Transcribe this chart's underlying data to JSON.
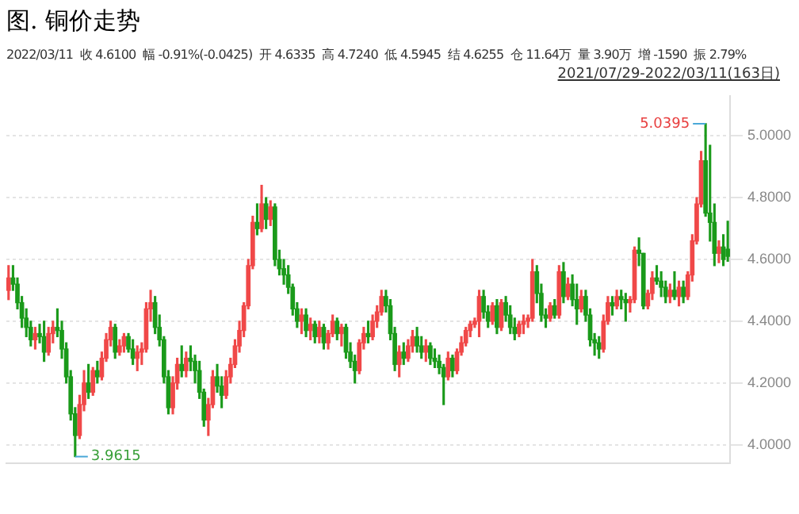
{
  "chart_data": {
    "type": "candlestick",
    "title": "图. 铜价走势",
    "subtitle": "2022/03/11  收 4.6100  幅 -0.91%(-0.0425)  开 4.6335  高 4.7240  低 4.5945  结 4.6255  仓 11.64万  量 3.90万  增 -1590  振 2.79%",
    "annotations": [
      "2021/07/29-2022/03/11(163日)",
      "5.0395",
      "3.9615"
    ],
    "ylim": [
      3.94,
      5.13
    ],
    "yticks": [
      {
        "value": 4,
        "label": "4.0000"
      },
      {
        "value": 4.2,
        "label": "4.2000"
      },
      {
        "value": 4.4,
        "label": "4.4000"
      },
      {
        "value": 4.6,
        "label": "4.6000"
      },
      {
        "value": 4.8,
        "label": "4.8000"
      },
      {
        "value": 5,
        "label": "5.0000"
      }
    ],
    "grid": "y",
    "ohlc": [
      [
        4.5,
        4.58,
        4.47,
        4.54
      ],
      [
        4.54,
        4.58,
        4.5,
        4.52
      ],
      [
        4.52,
        4.54,
        4.44,
        4.46
      ],
      [
        4.46,
        4.48,
        4.38,
        4.41
      ],
      [
        4.41,
        4.44,
        4.35,
        4.38
      ],
      [
        4.38,
        4.4,
        4.32,
        4.34
      ],
      [
        4.34,
        4.38,
        4.31,
        4.36
      ],
      [
        4.36,
        4.39,
        4.33,
        4.35
      ],
      [
        4.35,
        4.4,
        4.27,
        4.3
      ],
      [
        4.3,
        4.38,
        4.29,
        4.36
      ],
      [
        4.36,
        4.4,
        4.33,
        4.38
      ],
      [
        4.38,
        4.44,
        4.35,
        4.37
      ],
      [
        4.37,
        4.4,
        4.28,
        4.31
      ],
      [
        4.31,
        4.33,
        4.2,
        4.22
      ],
      [
        4.22,
        4.24,
        4.08,
        4.1
      ],
      [
        4.1,
        4.12,
        3.9615,
        4.03
      ],
      [
        4.03,
        4.16,
        4.02,
        4.13
      ],
      [
        4.13,
        4.24,
        4.11,
        4.2
      ],
      [
        4.2,
        4.26,
        4.15,
        4.17
      ],
      [
        4.17,
        4.25,
        4.16,
        4.24
      ],
      [
        4.24,
        4.27,
        4.2,
        4.22
      ],
      [
        4.22,
        4.3,
        4.21,
        4.28
      ],
      [
        4.28,
        4.36,
        4.27,
        4.34
      ],
      [
        4.34,
        4.4,
        4.32,
        4.38
      ],
      [
        4.38,
        4.39,
        4.28,
        4.3
      ],
      [
        4.3,
        4.34,
        4.29,
        4.32
      ],
      [
        4.32,
        4.36,
        4.3,
        4.35
      ],
      [
        4.35,
        4.36,
        4.3,
        4.31
      ],
      [
        4.31,
        4.34,
        4.26,
        4.28
      ],
      [
        4.28,
        4.32,
        4.24,
        4.3
      ],
      [
        4.3,
        4.33,
        4.26,
        4.31
      ],
      [
        4.31,
        4.46,
        4.3,
        4.44
      ],
      [
        4.44,
        4.5,
        4.4,
        4.46
      ],
      [
        4.46,
        4.48,
        4.36,
        4.38
      ],
      [
        4.38,
        4.42,
        4.32,
        4.34
      ],
      [
        4.34,
        4.35,
        4.2,
        4.22
      ],
      [
        4.22,
        4.24,
        4.1,
        4.12
      ],
      [
        4.12,
        4.22,
        4.1,
        4.2
      ],
      [
        4.2,
        4.28,
        4.18,
        4.26
      ],
      [
        4.26,
        4.32,
        4.22,
        4.24
      ],
      [
        4.24,
        4.3,
        4.22,
        4.28
      ],
      [
        4.28,
        4.32,
        4.24,
        4.27
      ],
      [
        4.27,
        4.29,
        4.2,
        4.24
      ],
      [
        4.24,
        4.27,
        4.15,
        4.17
      ],
      [
        4.17,
        4.18,
        4.06,
        4.08
      ],
      [
        4.08,
        4.15,
        4.03,
        4.13
      ],
      [
        4.13,
        4.24,
        4.12,
        4.22
      ],
      [
        4.22,
        4.26,
        4.17,
        4.19
      ],
      [
        4.19,
        4.22,
        4.12,
        4.16
      ],
      [
        4.16,
        4.24,
        4.15,
        4.22
      ],
      [
        4.22,
        4.28,
        4.2,
        4.26
      ],
      [
        4.26,
        4.34,
        4.25,
        4.32
      ],
      [
        4.32,
        4.4,
        4.3,
        4.37
      ],
      [
        4.37,
        4.46,
        4.35,
        4.45
      ],
      [
        4.45,
        4.6,
        4.44,
        4.58
      ],
      [
        4.58,
        4.74,
        4.57,
        4.72
      ],
      [
        4.72,
        4.78,
        4.68,
        4.7
      ],
      [
        4.7,
        4.84,
        4.69,
        4.78
      ],
      [
        4.78,
        4.8,
        4.7,
        4.73
      ],
      [
        4.73,
        4.79,
        4.71,
        4.77
      ],
      [
        4.77,
        4.78,
        4.58,
        4.6
      ],
      [
        4.6,
        4.63,
        4.55,
        4.57
      ],
      [
        4.57,
        4.6,
        4.52,
        4.55
      ],
      [
        4.55,
        4.58,
        4.49,
        4.51
      ],
      [
        4.51,
        4.52,
        4.42,
        4.44
      ],
      [
        4.44,
        4.46,
        4.38,
        4.4
      ],
      [
        4.4,
        4.44,
        4.36,
        4.42
      ],
      [
        4.42,
        4.44,
        4.35,
        4.37
      ],
      [
        4.37,
        4.41,
        4.34,
        4.39
      ],
      [
        4.39,
        4.4,
        4.33,
        4.35
      ],
      [
        4.35,
        4.4,
        4.33,
        4.38
      ],
      [
        4.38,
        4.39,
        4.31,
        4.33
      ],
      [
        4.33,
        4.37,
        4.31,
        4.36
      ],
      [
        4.36,
        4.42,
        4.35,
        4.4
      ],
      [
        4.4,
        4.41,
        4.34,
        4.36
      ],
      [
        4.36,
        4.39,
        4.32,
        4.38
      ],
      [
        4.38,
        4.39,
        4.28,
        4.3
      ],
      [
        4.3,
        4.33,
        4.25,
        4.27
      ],
      [
        4.27,
        4.29,
        4.2,
        4.24
      ],
      [
        4.24,
        4.34,
        4.23,
        4.33
      ],
      [
        4.33,
        4.38,
        4.31,
        4.36
      ],
      [
        4.36,
        4.4,
        4.33,
        4.35
      ],
      [
        4.35,
        4.42,
        4.34,
        4.4
      ],
      [
        4.4,
        4.45,
        4.38,
        4.43
      ],
      [
        4.43,
        4.5,
        4.42,
        4.48
      ],
      [
        4.48,
        4.5,
        4.43,
        4.45
      ],
      [
        4.45,
        4.47,
        4.34,
        4.36
      ],
      [
        4.36,
        4.38,
        4.24,
        4.26
      ],
      [
        4.26,
        4.32,
        4.22,
        4.3
      ],
      [
        4.3,
        4.33,
        4.26,
        4.28
      ],
      [
        4.28,
        4.34,
        4.27,
        4.32
      ],
      [
        4.32,
        4.37,
        4.3,
        4.35
      ],
      [
        4.35,
        4.38,
        4.3,
        4.32
      ],
      [
        4.32,
        4.35,
        4.28,
        4.3
      ],
      [
        4.3,
        4.34,
        4.27,
        4.32
      ],
      [
        4.32,
        4.33,
        4.26,
        4.28
      ],
      [
        4.28,
        4.31,
        4.25,
        4.27
      ],
      [
        4.27,
        4.29,
        4.23,
        4.25
      ],
      [
        4.25,
        4.26,
        4.13,
        4.22
      ],
      [
        4.22,
        4.3,
        4.21,
        4.28
      ],
      [
        4.28,
        4.29,
        4.22,
        4.24
      ],
      [
        4.24,
        4.31,
        4.23,
        4.3
      ],
      [
        4.3,
        4.35,
        4.29,
        4.33
      ],
      [
        4.33,
        4.38,
        4.32,
        4.37
      ],
      [
        4.37,
        4.4,
        4.35,
        4.39
      ],
      [
        4.39,
        4.41,
        4.38,
        4.4
      ],
      [
        4.4,
        4.5,
        4.35,
        4.48
      ],
      [
        4.48,
        4.5,
        4.41,
        4.43
      ],
      [
        4.43,
        4.45,
        4.38,
        4.4
      ],
      [
        4.4,
        4.46,
        4.39,
        4.45
      ],
      [
        4.45,
        4.47,
        4.36,
        4.38
      ],
      [
        4.38,
        4.47,
        4.37,
        4.46
      ],
      [
        4.46,
        4.48,
        4.4,
        4.42
      ],
      [
        4.42,
        4.45,
        4.36,
        4.38
      ],
      [
        4.38,
        4.41,
        4.34,
        4.36
      ],
      [
        4.36,
        4.4,
        4.35,
        4.39
      ],
      [
        4.39,
        4.42,
        4.36,
        4.4
      ],
      [
        4.4,
        4.42,
        4.38,
        4.41
      ],
      [
        4.41,
        4.6,
        4.4,
        4.56
      ],
      [
        4.56,
        4.58,
        4.46,
        4.49
      ],
      [
        4.49,
        4.52,
        4.4,
        4.42
      ],
      [
        4.42,
        4.44,
        4.38,
        4.41
      ],
      [
        4.41,
        4.46,
        4.4,
        4.45
      ],
      [
        4.45,
        4.47,
        4.41,
        4.42
      ],
      [
        4.42,
        4.58,
        4.41,
        4.56
      ],
      [
        4.56,
        4.59,
        4.46,
        4.48
      ],
      [
        4.48,
        4.54,
        4.47,
        4.52
      ],
      [
        4.52,
        4.55,
        4.45,
        4.47
      ],
      [
        4.47,
        4.52,
        4.39,
        4.44
      ],
      [
        4.44,
        4.5,
        4.43,
        4.48
      ],
      [
        4.48,
        4.5,
        4.4,
        4.42
      ],
      [
        4.42,
        4.44,
        4.32,
        4.34
      ],
      [
        4.34,
        4.36,
        4.29,
        4.33
      ],
      [
        4.33,
        4.35,
        4.28,
        4.31
      ],
      [
        4.31,
        4.42,
        4.3,
        4.4
      ],
      [
        4.4,
        4.48,
        4.39,
        4.46
      ],
      [
        4.46,
        4.48,
        4.42,
        4.45
      ],
      [
        4.45,
        4.5,
        4.44,
        4.48
      ],
      [
        4.48,
        4.5,
        4.44,
        4.47
      ],
      [
        4.47,
        4.49,
        4.4,
        4.46
      ],
      [
        4.46,
        4.48,
        4.43,
        4.47
      ],
      [
        4.47,
        4.64,
        4.46,
        4.63
      ],
      [
        4.63,
        4.67,
        4.58,
        4.62
      ],
      [
        4.62,
        4.62,
        4.44,
        4.45
      ],
      [
        4.45,
        4.5,
        4.44,
        4.49
      ],
      [
        4.49,
        4.56,
        4.47,
        4.54
      ],
      [
        4.54,
        4.58,
        4.52,
        4.53
      ],
      [
        4.53,
        4.56,
        4.48,
        4.51
      ],
      [
        4.51,
        4.53,
        4.46,
        4.48
      ],
      [
        4.48,
        4.52,
        4.46,
        4.5
      ],
      [
        4.5,
        4.56,
        4.47,
        4.48
      ],
      [
        4.48,
        4.53,
        4.45,
        4.51
      ],
      [
        4.51,
        4.53,
        4.46,
        4.48
      ],
      [
        4.48,
        4.56,
        4.47,
        4.55
      ],
      [
        4.55,
        4.68,
        4.53,
        4.66
      ],
      [
        4.66,
        4.8,
        4.65,
        4.78
      ],
      [
        4.78,
        4.95,
        4.77,
        4.92
      ],
      [
        4.92,
        5.0395,
        4.74,
        4.75
      ],
      [
        4.75,
        4.97,
        4.66,
        4.72
      ],
      [
        4.72,
        4.78,
        4.58,
        4.62
      ],
      [
        4.62,
        4.66,
        4.59,
        4.64
      ],
      [
        4.64,
        4.68,
        4.58,
        4.6
      ],
      [
        4.6335,
        4.724,
        4.5945,
        4.61
      ]
    ],
    "colors": [
      "#f04848",
      "#1a9a1a",
      "#1a9a1a",
      "#1a9a1a",
      "#1a9a1a",
      "#1a9a1a",
      "#f04848",
      "#1a9a1a",
      "#1a9a1a",
      "#f04848",
      "#f04848",
      "#1a9a1a",
      "#1a9a1a",
      "#1a9a1a",
      "#1a9a1a",
      "#1a9a1a",
      "#f04848",
      "#f04848",
      "#1a9a1a",
      "#f04848",
      "#1a9a1a",
      "#f04848",
      "#f04848",
      "#f04848",
      "#1a9a1a",
      "#f04848",
      "#f04848",
      "#1a9a1a",
      "#1a9a1a",
      "#f04848",
      "#f04848",
      "#f04848",
      "#f04848",
      "#1a9a1a",
      "#1a9a1a",
      "#1a9a1a",
      "#1a9a1a",
      "#f04848",
      "#f04848",
      "#1a9a1a",
      "#f04848",
      "#1a9a1a",
      "#1a9a1a",
      "#1a9a1a",
      "#1a9a1a",
      "#f04848",
      "#f04848",
      "#1a9a1a",
      "#1a9a1a",
      "#f04848",
      "#f04848",
      "#f04848",
      "#f04848",
      "#f04848",
      "#f04848",
      "#f04848",
      "#1a9a1a",
      "#f04848",
      "#1a9a1a",
      "#f04848",
      "#1a9a1a",
      "#1a9a1a",
      "#1a9a1a",
      "#1a9a1a",
      "#1a9a1a",
      "#1a9a1a",
      "#f04848",
      "#1a9a1a",
      "#f04848",
      "#1a9a1a",
      "#f04848",
      "#1a9a1a",
      "#f04848",
      "#f04848",
      "#1a9a1a",
      "#f04848",
      "#1a9a1a",
      "#1a9a1a",
      "#1a9a1a",
      "#f04848",
      "#f04848",
      "#1a9a1a",
      "#f04848",
      "#f04848",
      "#f04848",
      "#1a9a1a",
      "#1a9a1a",
      "#1a9a1a",
      "#f04848",
      "#1a9a1a",
      "#f04848",
      "#f04848",
      "#1a9a1a",
      "#1a9a1a",
      "#f04848",
      "#1a9a1a",
      "#1a9a1a",
      "#1a9a1a",
      "#1a9a1a",
      "#f04848",
      "#1a9a1a",
      "#f04848",
      "#f04848",
      "#f04848",
      "#f04848",
      "#f04848",
      "#f04848",
      "#1a9a1a",
      "#1a9a1a",
      "#f04848",
      "#1a9a1a",
      "#f04848",
      "#1a9a1a",
      "#1a9a1a",
      "#1a9a1a",
      "#f04848",
      "#f04848",
      "#f04848",
      "#f04848",
      "#1a9a1a",
      "#1a9a1a",
      "#1a9a1a",
      "#f04848",
      "#1a9a1a",
      "#f04848",
      "#1a9a1a",
      "#f04848",
      "#1a9a1a",
      "#1a9a1a",
      "#f04848",
      "#1a9a1a",
      "#1a9a1a",
      "#1a9a1a",
      "#1a9a1a",
      "#f04848",
      "#f04848",
      "#1a9a1a",
      "#f04848",
      "#1a9a1a",
      "#1a9a1a",
      "#f04848",
      "#f04848",
      "#1a9a1a",
      "#1a9a1a",
      "#f04848",
      "#f04848",
      "#1a9a1a",
      "#1a9a1a",
      "#1a9a1a",
      "#f04848",
      "#1a9a1a",
      "#f04848",
      "#1a9a1a",
      "#f04848",
      "#f04848",
      "#f04848",
      "#f04848",
      "#1a9a1a",
      "#1a9a1a",
      "#1a9a1a",
      "#f04848",
      "#1a9a1a",
      "#1a9a1a"
    ]
  }
}
